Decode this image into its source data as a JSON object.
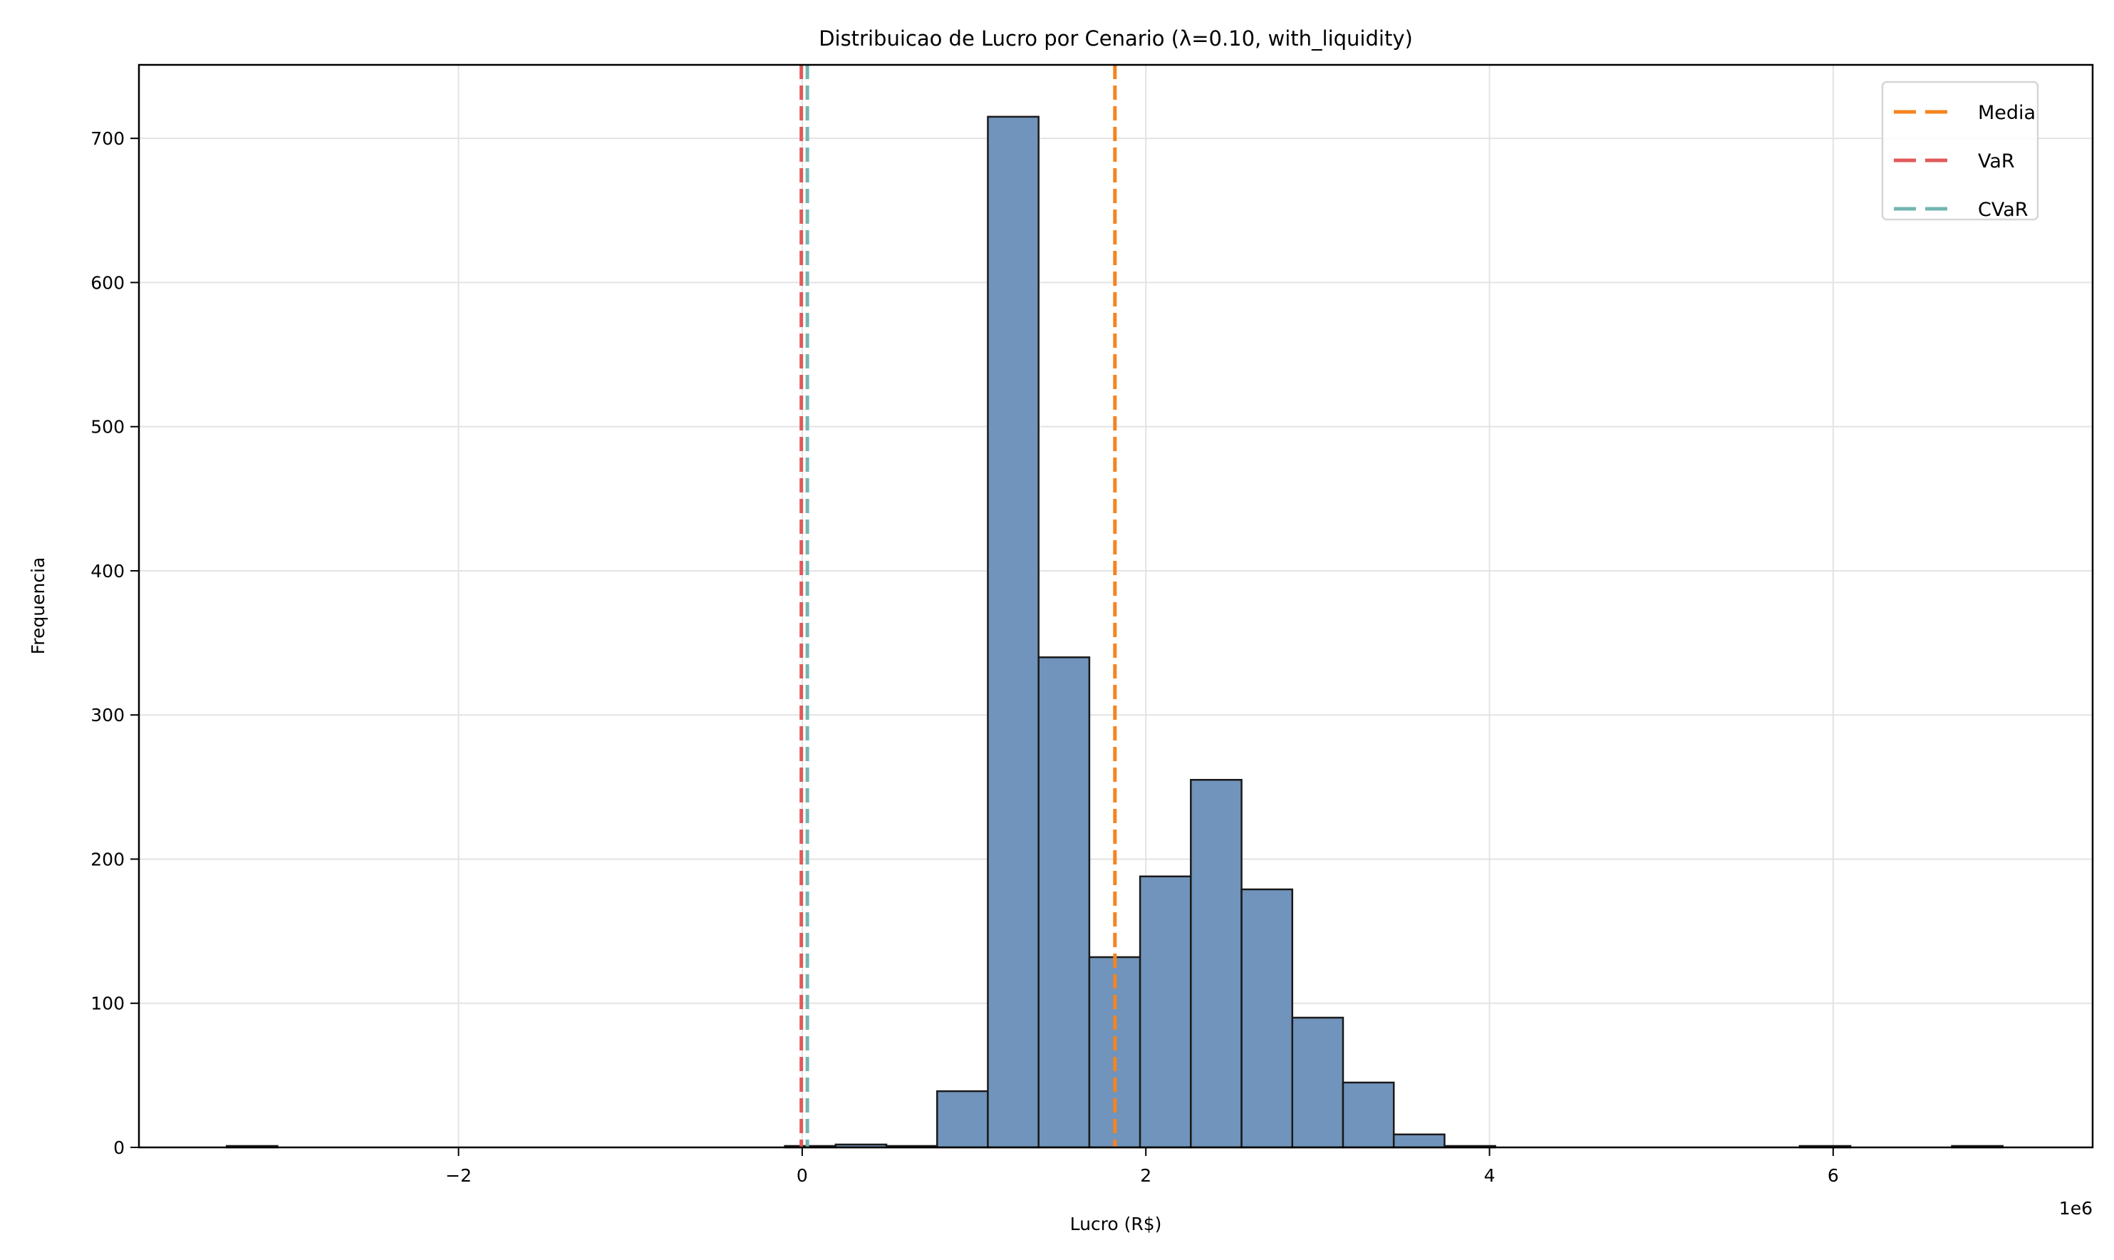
{
  "chart_data": {
    "type": "histogram",
    "title": "Distribuicao de Lucro por Cenario (λ=0.10, with_liquidity)",
    "xlabel": "Lucro (R$)",
    "ylabel": "Frequencia",
    "x_offset_label": "1e6",
    "xlim": [
      -3.86,
      7.51
    ],
    "ylim": [
      0,
      751
    ],
    "xticks": [
      -2,
      0,
      2,
      4,
      6
    ],
    "xtick_labels": [
      "−2",
      "0",
      "2",
      "4",
      "6"
    ],
    "yticks": [
      0,
      100,
      200,
      300,
      400,
      500,
      600,
      700
    ],
    "ytick_labels": [
      "0",
      "100",
      "200",
      "300",
      "400",
      "500",
      "600",
      "700"
    ],
    "grid": true,
    "bin_start": -3.349,
    "bin_width": 0.2953,
    "counts": [
      1,
      0,
      0,
      0,
      0,
      0,
      0,
      0,
      0,
      0,
      0,
      1,
      2,
      1,
      39,
      715,
      340,
      132,
      188,
      255,
      179,
      90,
      45,
      9,
      1,
      0,
      0,
      0,
      0,
      0,
      0,
      1,
      0,
      0,
      1
    ],
    "bar_color": "#7094bb",
    "edge_color": "#1a1a1a",
    "vlines": [
      {
        "name": "Media",
        "x": 1.82,
        "color": "#f5841f"
      },
      {
        "name": "VaR",
        "x": -0.005,
        "color": "#e05a5a"
      },
      {
        "name": "CVaR",
        "x": 0.03,
        "color": "#72b7b0"
      }
    ],
    "legend_position": "top-right"
  }
}
